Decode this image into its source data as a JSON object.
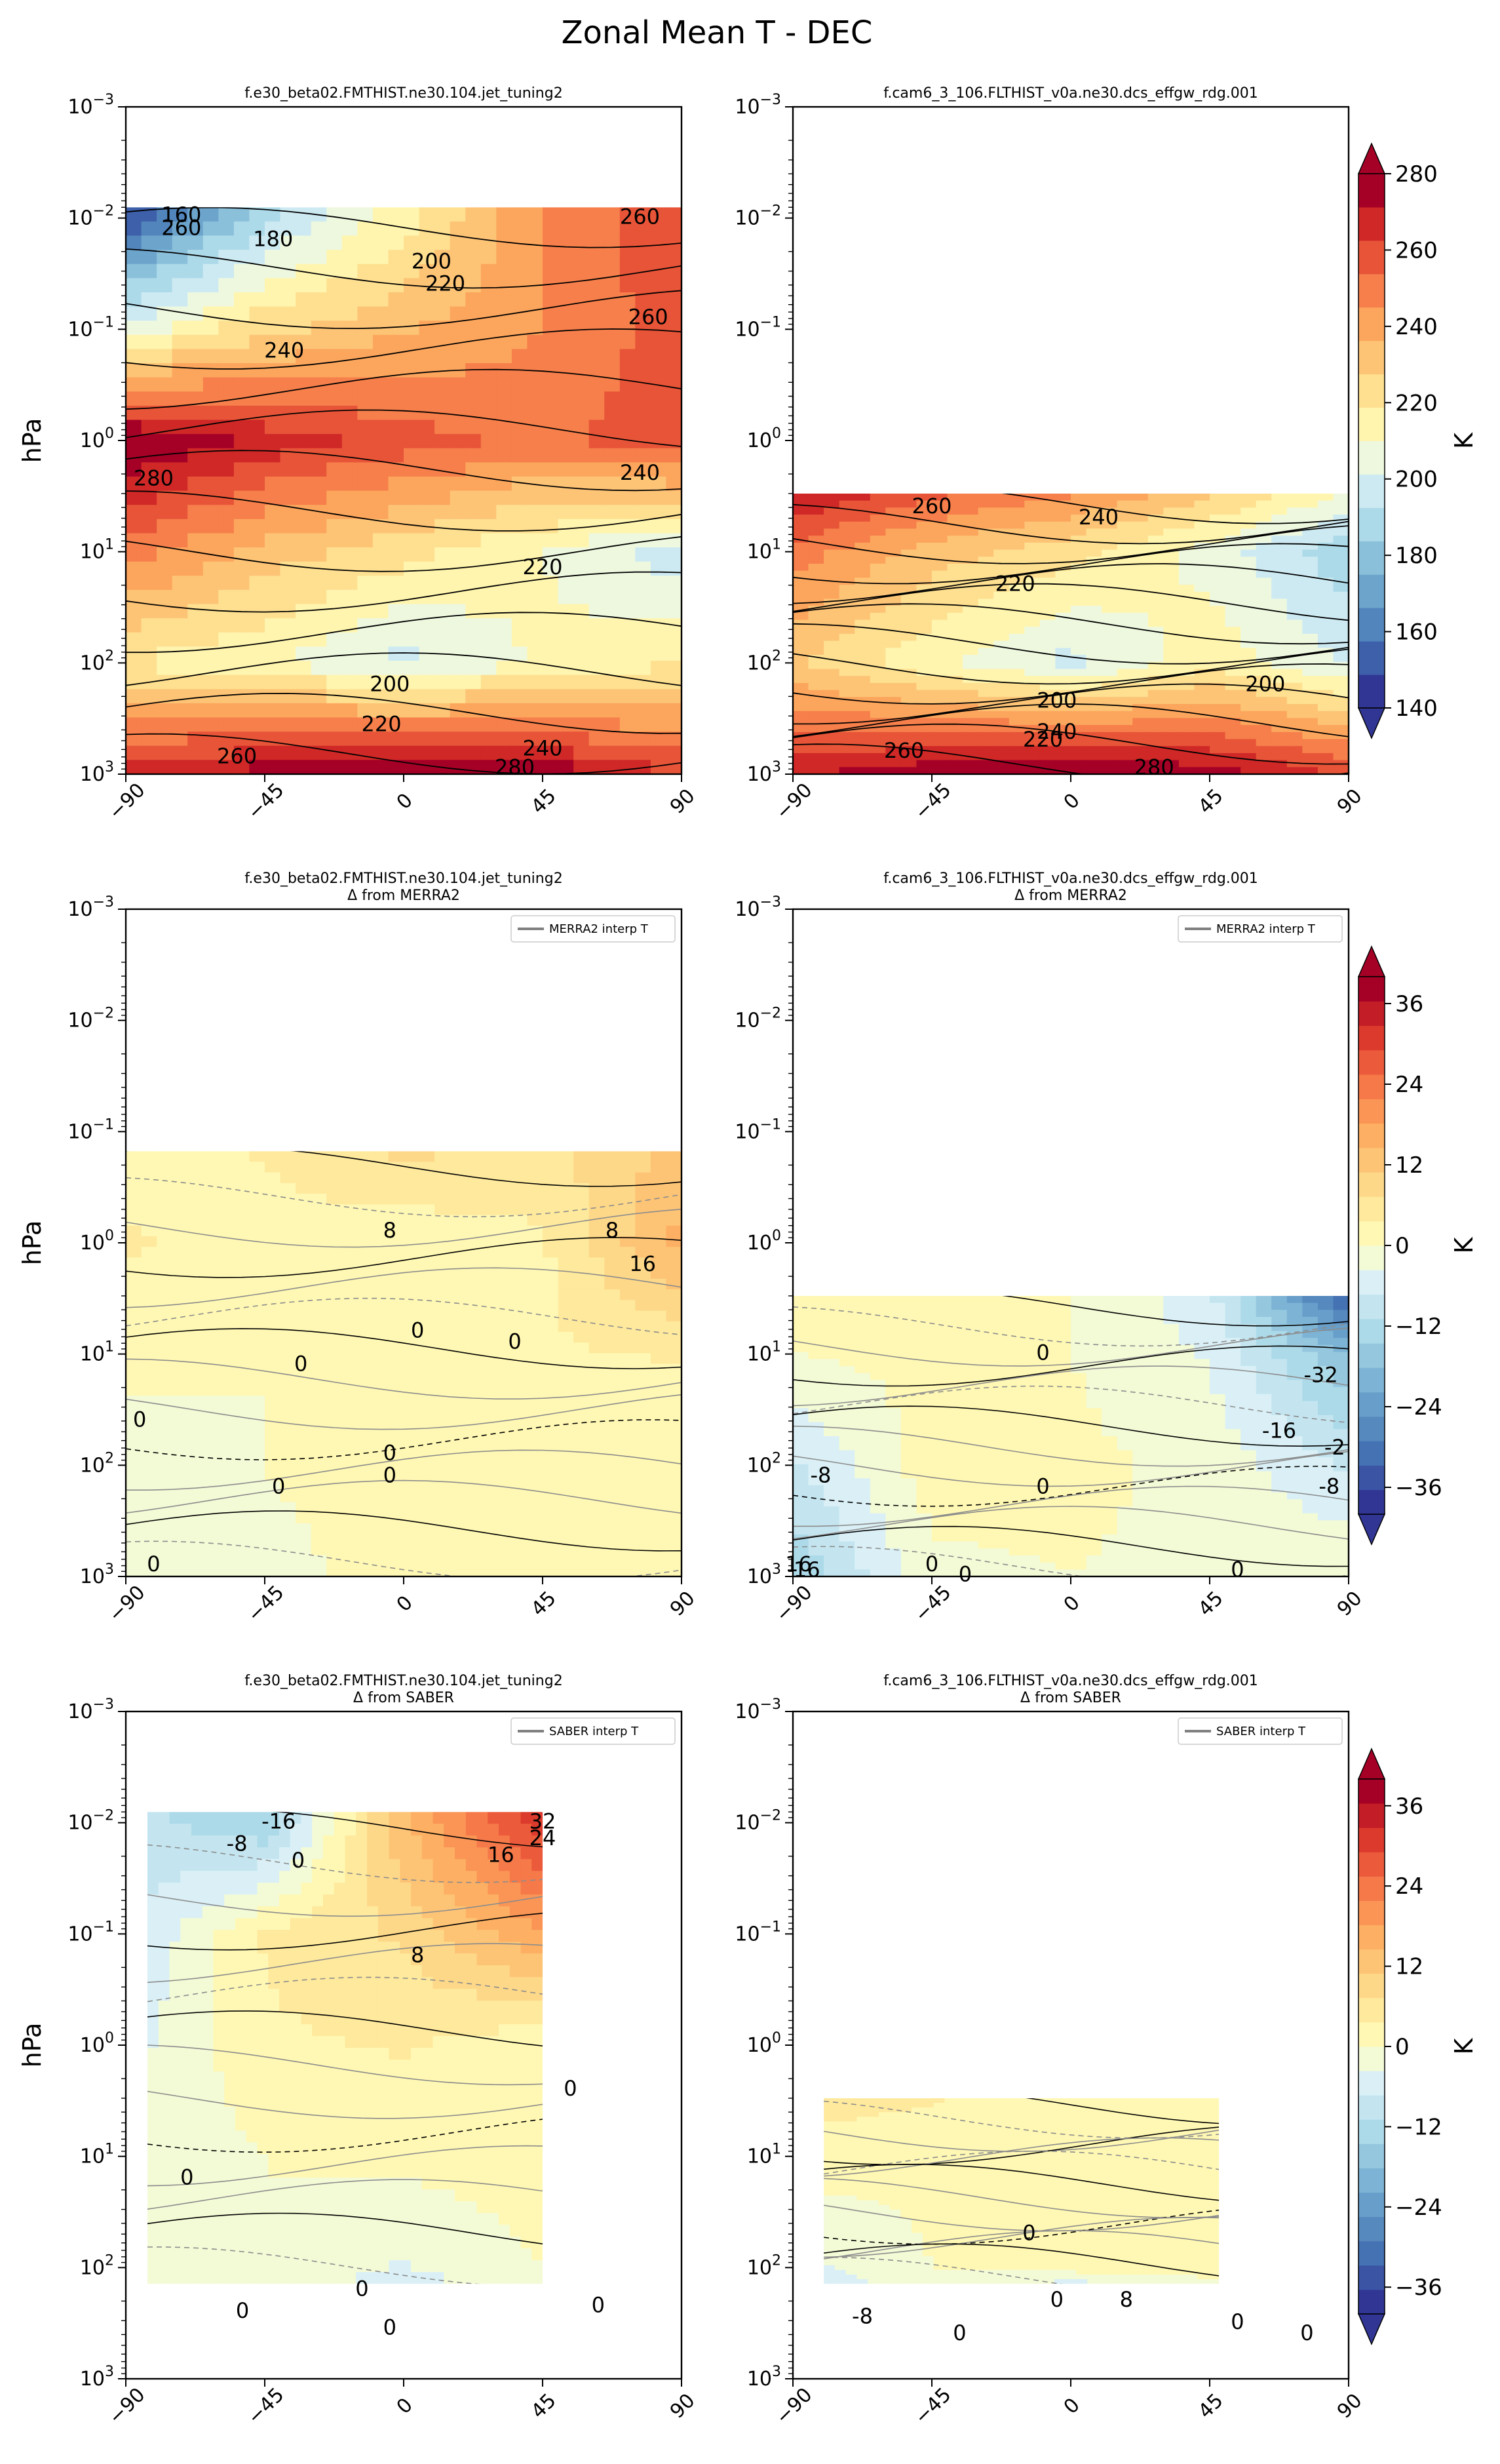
{
  "figure": {
    "suptitle": "Zonal Mean T - DEC",
    "y_axis_label": "hPa",
    "colorbar_label": "K"
  },
  "chart_data": [
    {
      "type": "contour",
      "panel": "abs-case",
      "title": "f.e30_beta02.FMTHIST.ne30.104.jet_tuning2",
      "subtitle": "",
      "ylabel": "hPa",
      "xlim": [
        -90,
        90
      ],
      "ylim": [
        1000,
        0.001
      ],
      "yscale": "log",
      "data_top_hPa": 0.008,
      "xticks": [
        "−90",
        "−45",
        "0",
        "45",
        "90"
      ],
      "contour_labels": [
        "160",
        "180",
        "200",
        "220",
        "240",
        "260",
        "260",
        "260",
        "240",
        "280",
        "220",
        "200",
        "220",
        "240",
        "260",
        "280"
      ],
      "field": {
        "lat": [
          -90,
          -45,
          0,
          45,
          90
        ],
        "plev_hPa": [
          0.01,
          0.1,
          1,
          10,
          100,
          1000
        ],
        "values": [
          [
            150,
            190,
            215,
            245,
            262
          ],
          [
            205,
            225,
            235,
            245,
            258
          ],
          [
            282,
            268,
            258,
            250,
            262
          ],
          [
            250,
            232,
            222,
            210,
            196
          ],
          [
            218,
            212,
            198,
            212,
            218
          ],
          [
            268,
            276,
            284,
            278,
            262
          ]
        ]
      },
      "legend": ""
    },
    {
      "type": "contour",
      "panel": "abs-baseline",
      "title": "f.cam6_3_106.FLTHIST_v0a.ne30.dcs_effgw_rdg.001",
      "subtitle": "",
      "ylabel": "",
      "xlim": [
        -90,
        90
      ],
      "ylim": [
        1000,
        0.001
      ],
      "yscale": "log",
      "data_top_hPa": 3.0,
      "xticks": [
        "−90",
        "−45",
        "0",
        "45",
        "90"
      ],
      "contour_labels": [
        "260",
        "240",
        "220",
        "200",
        "200",
        "220",
        "240",
        "260",
        "280"
      ],
      "field": {
        "lat": [
          -90,
          -45,
          0,
          45,
          90
        ],
        "plev_hPa": [
          3,
          10,
          100,
          1000
        ],
        "values": [
          [
            272,
            256,
            246,
            230,
            208
          ],
          [
            250,
            232,
            222,
            206,
            186
          ],
          [
            228,
            212,
            198,
            216,
            200
          ],
          [
            270,
            278,
            284,
            276,
            262
          ]
        ]
      },
      "legend": ""
    },
    {
      "type": "contour",
      "panel": "diff-case-merra2",
      "title": "f.e30_beta02.FMTHIST.ne30.104.jet_tuning2",
      "subtitle": "Δ from MERRA2",
      "ylabel": "hPa",
      "xlim": [
        -90,
        90
      ],
      "ylim": [
        1000,
        0.001
      ],
      "yscale": "log",
      "data_top_hPa": 0.15,
      "xticks": [
        "−90",
        "−45",
        "0",
        "45",
        "90"
      ],
      "contour_labels": [
        "8",
        "8",
        "16",
        "0",
        "0",
        "0",
        "0",
        "0",
        "0",
        "0",
        "0"
      ],
      "field": {
        "lat": [
          -90,
          -45,
          0,
          45,
          90
        ],
        "plev_hPa": [
          0.15,
          1,
          10,
          100,
          1000
        ],
        "values": [
          [
            2,
            4,
            8,
            6,
            12
          ],
          [
            4,
            2,
            1,
            3,
            16
          ],
          [
            1,
            0,
            1,
            3,
            4
          ],
          [
            -2,
            0,
            2,
            1,
            0
          ],
          [
            -3,
            -1,
            1,
            0,
            0
          ]
        ]
      },
      "legend": "MERRA2 interp T"
    },
    {
      "type": "contour",
      "panel": "diff-baseline-merra2",
      "title": "f.cam6_3_106.FLTHIST_v0a.ne30.dcs_effgw_rdg.001",
      "subtitle": "Δ from MERRA2",
      "ylabel": "",
      "xlim": [
        -90,
        90
      ],
      "ylim": [
        1000,
        0.001
      ],
      "yscale": "log",
      "data_top_hPa": 3.0,
      "xticks": [
        "−90",
        "−45",
        "0",
        "45",
        "90"
      ],
      "contour_labels": [
        "0",
        "-32",
        "-16",
        "-2",
        "-8",
        "-8",
        "0",
        "16",
        "16",
        "0",
        "0",
        "0"
      ],
      "field": {
        "lat": [
          -90,
          -45,
          0,
          45,
          90
        ],
        "plev_hPa": [
          3,
          10,
          100,
          1000
        ],
        "values": [
          [
            3,
            2,
            0,
            -6,
            -34
          ],
          [
            0,
            1,
            0,
            -4,
            -18
          ],
          [
            -8,
            2,
            1,
            -1,
            -8
          ],
          [
            -14,
            -1,
            0,
            -1,
            0
          ]
        ]
      },
      "legend": "MERRA2 interp T"
    },
    {
      "type": "contour",
      "panel": "diff-case-saber",
      "title": "f.e30_beta02.FMTHIST.ne30.104.jet_tuning2",
      "subtitle": "Δ from SABER",
      "ylabel": "hPa",
      "xlim": [
        -90,
        90
      ],
      "ylim": [
        1000,
        0.001
      ],
      "yscale": "log",
      "data_top_hPa": 0.008,
      "data_bottom_hPa": 140,
      "data_lat_range": [
        -83,
        45
      ],
      "xticks": [
        "−90",
        "−45",
        "0",
        "45",
        "90"
      ],
      "contour_labels": [
        "-8",
        "-16",
        "0",
        "16",
        "32",
        "24",
        "8",
        "0",
        "0",
        "0",
        "0",
        "0",
        "0"
      ],
      "field": {
        "lat": [
          -83,
          -45,
          0,
          45
        ],
        "plev_hPa": [
          0.01,
          0.1,
          1,
          10,
          100,
          140
        ],
        "values": [
          [
            -10,
            -14,
            14,
            32
          ],
          [
            -6,
            4,
            8,
            18
          ],
          [
            -4,
            3,
            4,
            1
          ],
          [
            -2,
            0,
            1,
            2
          ],
          [
            -3,
            0,
            -4,
            0
          ],
          [
            -2,
            -1,
            -6,
            0
          ]
        ]
      },
      "legend": "SABER interp T"
    },
    {
      "type": "contour",
      "panel": "diff-baseline-saber",
      "title": "f.cam6_3_106.FLTHIST_v0a.ne30.dcs_effgw_rdg.001",
      "subtitle": "Δ from SABER",
      "ylabel": "",
      "xlim": [
        -90,
        90
      ],
      "ylim": [
        1000,
        0.001
      ],
      "yscale": "log",
      "data_top_hPa": 3.0,
      "data_bottom_hPa": 140,
      "data_lat_range": [
        -80,
        48
      ],
      "xticks": [
        "−90",
        "−45",
        "0",
        "45",
        "90"
      ],
      "contour_labels": [
        "0",
        "0",
        "-8",
        "0",
        "0",
        "8",
        "0"
      ],
      "field": {
        "lat": [
          -80,
          -45,
          0,
          48
        ],
        "plev_hPa": [
          3,
          10,
          100,
          140
        ],
        "values": [
          [
            5,
            4,
            2,
            3
          ],
          [
            2,
            1,
            0,
            1
          ],
          [
            -4,
            0,
            2,
            1
          ],
          [
            -6,
            0,
            -5,
            0
          ]
        ]
      },
      "legend": "SABER interp T"
    }
  ],
  "colorbars": [
    {
      "name": "colorbar-absolute",
      "ticks": [
        "140",
        "160",
        "180",
        "200",
        "220",
        "240",
        "260",
        "280"
      ],
      "range": [
        140,
        280
      ],
      "label": "K"
    },
    {
      "name": "colorbar-diff-merra2",
      "ticks": [
        "−36",
        "−24",
        "−12",
        "0",
        "12",
        "24",
        "36"
      ],
      "range": [
        -36,
        36
      ],
      "label": "K"
    },
    {
      "name": "colorbar-diff-saber",
      "ticks": [
        "−36",
        "−24",
        "−12",
        "0",
        "12",
        "24",
        "36"
      ],
      "range": [
        -36,
        36
      ],
      "label": "K"
    }
  ],
  "yticks_exponents": [
    "−3",
    "−2",
    "−1",
    "0",
    "1",
    "2",
    "3"
  ],
  "yticks_base": "10",
  "colors": {
    "deep_blue": "#313695",
    "light_blue": "#abd9e9",
    "pale_yellow": "#ffffbf",
    "orange": "#fdae61",
    "deep_red": "#a50026"
  }
}
